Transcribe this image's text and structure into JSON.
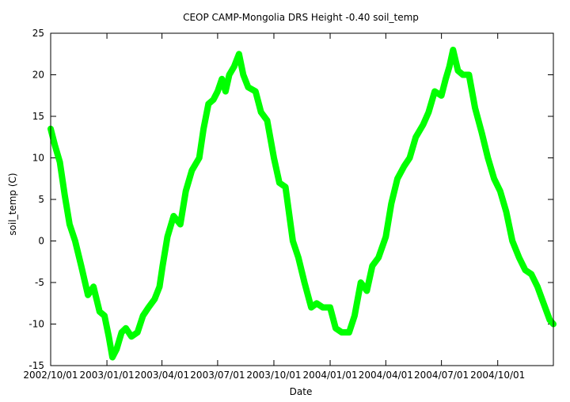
{
  "chart_data": {
    "type": "line",
    "title": "CEOP CAMP-Mongolia DRS Height -0.40 soil_temp",
    "xlabel": "Date",
    "ylabel": "soil_temp (C)",
    "ylim": [
      -15,
      25
    ],
    "yticks": [
      -15,
      -10,
      -5,
      0,
      5,
      10,
      15,
      20,
      25
    ],
    "xlim": [
      "2002-10-01",
      "2004-12-31"
    ],
    "xticks": [
      "2002/10/01",
      "2003/01/01",
      "2003/04/01",
      "2003/07/01",
      "2003/10/01",
      "2004/01/01",
      "2004/04/01",
      "2004/07/01",
      "2004/10/01"
    ],
    "grid": false,
    "line_color": "#00ff00",
    "series": [
      {
        "x": [
          "2002-10-01",
          "2002-10-08",
          "2002-10-16",
          "2002-10-24",
          "2002-11-01",
          "2002-11-10",
          "2002-11-20",
          "2002-12-01",
          "2002-12-10",
          "2002-12-20",
          "2002-12-28",
          "2003-01-04",
          "2003-01-10",
          "2003-01-17",
          "2003-01-25",
          "2003-02-01",
          "2003-02-10",
          "2003-02-20",
          "2003-03-01",
          "2003-03-10",
          "2003-03-20",
          "2003-03-28",
          "2003-04-02",
          "2003-04-10",
          "2003-04-20",
          "2003-05-01",
          "2003-05-10",
          "2003-05-20",
          "2003-06-01",
          "2003-06-08",
          "2003-06-16",
          "2003-06-24",
          "2003-07-01",
          "2003-07-08",
          "2003-07-14",
          "2003-07-20",
          "2003-07-28",
          "2003-08-05",
          "2003-08-12",
          "2003-08-20",
          "2003-09-01",
          "2003-09-10",
          "2003-09-20",
          "2003-10-01",
          "2003-10-10",
          "2003-10-20",
          "2003-11-01",
          "2003-11-10",
          "2003-11-20",
          "2003-12-01",
          "2003-12-10",
          "2003-12-20",
          "2004-01-01",
          "2004-01-10",
          "2004-01-20",
          "2004-02-01",
          "2004-02-10",
          "2004-02-20",
          "2004-03-01",
          "2004-03-10",
          "2004-03-20",
          "2004-04-01",
          "2004-04-10",
          "2004-04-20",
          "2004-05-01",
          "2004-05-10",
          "2004-05-20",
          "2004-06-01",
          "2004-06-10",
          "2004-06-20",
          "2004-07-01",
          "2004-07-08",
          "2004-07-14",
          "2004-07-20",
          "2004-07-28",
          "2004-08-05",
          "2004-08-15",
          "2004-08-25",
          "2004-09-05",
          "2004-09-15",
          "2004-09-25",
          "2004-10-05",
          "2004-10-15",
          "2004-10-25",
          "2004-11-05",
          "2004-11-15",
          "2004-11-25",
          "2004-12-05",
          "2004-12-15",
          "2004-12-25",
          "2004-12-31"
        ],
        "y": [
          13.5,
          11.5,
          9.5,
          5.5,
          2,
          0,
          -3,
          -6.5,
          -5.5,
          -8.5,
          -9,
          -11.5,
          -14,
          -13,
          -11,
          -10.5,
          -11.5,
          -11,
          -9,
          -8,
          -7,
          -5.5,
          -3,
          0.5,
          3,
          2,
          6,
          8.5,
          10,
          13.5,
          16.5,
          17,
          18,
          19.5,
          18,
          20,
          21,
          22.5,
          20,
          18.5,
          18,
          15.5,
          14.5,
          10,
          7,
          6.5,
          0,
          -2,
          -5,
          -8,
          -7.5,
          -8,
          -8,
          -10.5,
          -11,
          -11,
          -9,
          -5,
          -6,
          -3,
          -2,
          0.5,
          4.5,
          7.5,
          9,
          10,
          12.5,
          14,
          15.5,
          18,
          17.5,
          19.5,
          21,
          23,
          20.5,
          20,
          20,
          16,
          13,
          10,
          7.5,
          6,
          3.5,
          0,
          -2,
          -3.5,
          -4,
          -5.5,
          -7.5,
          -9.5,
          -10
        ]
      }
    ]
  }
}
